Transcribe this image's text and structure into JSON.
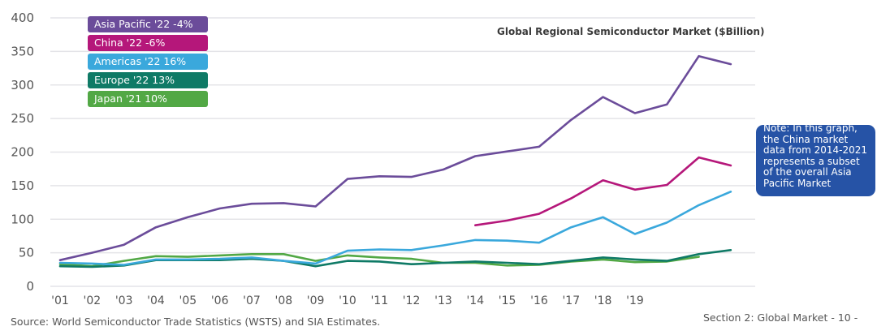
{
  "chart_data": {
    "type": "line",
    "title": "Global Regional Semiconductor Market ($Billion)",
    "xlabel": "",
    "ylabel": "",
    "ylim": [
      0,
      400
    ],
    "yticks": [
      "0",
      "50",
      "100",
      "150",
      "200",
      "250",
      "300",
      "350",
      "400"
    ],
    "ytick_values": [
      0,
      50,
      100,
      150,
      200,
      250,
      300,
      350,
      400
    ],
    "x": [
      2001,
      2002,
      2003,
      2004,
      2005,
      2006,
      2007,
      2008,
      2009,
      2010,
      2011,
      2012,
      2013,
      2014,
      2015,
      2016,
      2017,
      2018,
      2019,
      2020,
      2021,
      2022
    ],
    "xtick_labels": [
      "'01",
      "'02",
      "'03",
      "'04",
      "'05",
      "'06",
      "'07",
      "'08",
      "'09",
      "'10",
      "'11",
      "'12",
      "'13",
      "'14",
      "'15",
      "'16",
      "'17",
      "'18",
      "'19"
    ],
    "grid": true,
    "legend_position": "top-left",
    "series": [
      {
        "name": "Asia Pacific",
        "legend_label": "Asia Pacific '22  -4%",
        "color": "#6b4c9a",
        "values": [
          39,
          50,
          62,
          88,
          103,
          116,
          123,
          124,
          119,
          160,
          164,
          163,
          174,
          194,
          201,
          208,
          248,
          282,
          258,
          271,
          343,
          331
        ]
      },
      {
        "name": "China",
        "legend_label": "China '22  -6%",
        "color": "#b5177a",
        "values": [
          null,
          null,
          null,
          null,
          null,
          null,
          null,
          null,
          null,
          null,
          null,
          null,
          null,
          91,
          98,
          108,
          131,
          158,
          144,
          151,
          192,
          180
        ]
      },
      {
        "name": "Americas",
        "legend_label": "Americas '22  16%",
        "color": "#3aa8dc",
        "values": [
          35,
          34,
          32,
          40,
          40,
          41,
          43,
          38,
          34,
          53,
          55,
          54,
          61,
          69,
          68,
          65,
          88,
          103,
          78,
          95,
          121,
          141
        ]
      },
      {
        "name": "Europe",
        "legend_label": "Europe '22  13%",
        "color": "#0f7a66",
        "values": [
          30,
          29,
          31,
          39,
          39,
          39,
          41,
          38,
          30,
          38,
          37,
          33,
          35,
          37,
          35,
          33,
          38,
          43,
          40,
          38,
          48,
          54
        ]
      },
      {
        "name": "Japan",
        "legend_label": "Japan '21  10%",
        "color": "#52a845",
        "values": [
          33,
          30,
          38,
          45,
          44,
          46,
          48,
          48,
          38,
          46,
          43,
          41,
          35,
          35,
          31,
          32,
          37,
          40,
          36,
          37,
          44,
          null
        ]
      }
    ],
    "annotations": [
      "Note: In this graph, the China market data from 2014-2021 represents a subset of the overall Asia Pacific Market"
    ]
  },
  "note": "Note: In this graph, the China market data from 2014-2021 represents a subset of the overall Asia Pacific Market",
  "source": "Source: World Semiconductor Trade Statistics (WSTS) and SIA Estimates.",
  "footer": "Section 2: Global Market - 10 -"
}
